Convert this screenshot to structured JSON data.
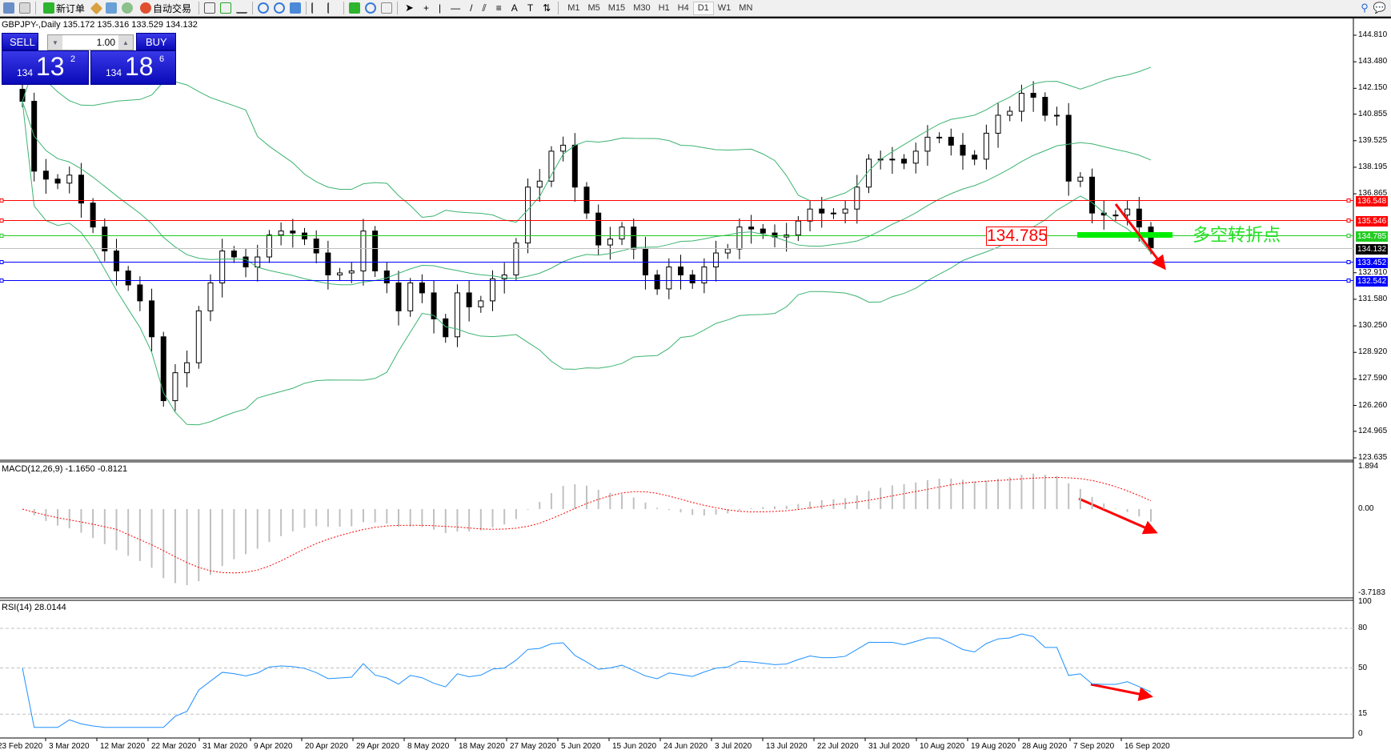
{
  "toolbar": {
    "new_order": "新订单",
    "auto_trading": "自动交易",
    "timeframes": [
      "M1",
      "M5",
      "M15",
      "M30",
      "H1",
      "H4",
      "D1",
      "W1",
      "MN"
    ],
    "active_timeframe": "D1"
  },
  "chart": {
    "header": "GBPJPY-,Daily  135.172 135.316 133.529 134.132",
    "symbol": "GBPJPY-",
    "period": "Daily"
  },
  "one_click": {
    "sell_label": "SELL",
    "buy_label": "BUY",
    "lot": "1.00",
    "sell_prefix": "134",
    "sell_big": "13",
    "sell_sup": "2",
    "buy_prefix": "134",
    "buy_big": "18",
    "buy_sup": "6"
  },
  "price_axis": {
    "ticks": [
      "144.810",
      "143.480",
      "142.150",
      "140.855",
      "139.525",
      "138.195",
      "136.865",
      "132.910",
      "131.580",
      "130.250",
      "128.920",
      "127.590",
      "126.260",
      "124.965",
      "123.635"
    ],
    "max": 144.81,
    "min": 123.635
  },
  "levels": [
    {
      "price": 136.548,
      "label": "136.548",
      "color": "#ff0000"
    },
    {
      "price": 135.546,
      "label": "135.546",
      "color": "#ff0000"
    },
    {
      "price": 134.785,
      "label": "134.785",
      "color": "#22cc22"
    },
    {
      "price": 134.132,
      "label": "134.132",
      "color": "#000000",
      "line": "#c0c0c0"
    },
    {
      "price": 133.452,
      "label": "133.452",
      "color": "#0000ff"
    },
    {
      "price": 132.542,
      "label": "132.542",
      "color": "#0000ff"
    }
  ],
  "annotations": {
    "level_box": "134.785",
    "turning_point": "多空转折点",
    "arrow_color": "#ff0000",
    "bar_color": "#00ee00"
  },
  "closes": [
    141.5,
    138.0,
    137.6,
    137.4,
    137.8,
    136.4,
    135.2,
    134.0,
    133.0,
    132.3,
    131.5,
    129.7,
    126.5,
    127.9,
    128.4,
    131.0,
    132.4,
    134.0,
    133.7,
    133.2,
    133.7,
    134.8,
    135.0,
    134.9,
    134.6,
    133.9,
    132.8,
    132.9,
    133.0,
    135.0,
    133.0,
    132.4,
    131.0,
    132.4,
    131.9,
    130.6,
    129.7,
    131.9,
    131.2,
    131.5,
    132.6,
    132.8,
    134.4,
    137.2,
    137.5,
    139.0,
    139.3,
    137.2,
    135.9,
    134.3,
    134.6,
    135.2,
    134.1,
    132.8,
    132.1,
    133.2,
    132.8,
    132.4,
    133.2,
    133.9,
    134.1,
    135.2,
    135.1,
    134.9,
    134.7,
    134.8,
    135.5,
    136.1,
    135.9,
    135.9,
    136.1,
    137.2,
    138.6,
    138.6,
    138.6,
    138.4,
    139.0,
    139.7,
    139.7,
    139.3,
    138.8,
    138.6,
    139.9,
    140.8,
    141.0,
    141.9,
    141.7,
    140.8,
    140.8,
    137.5,
    137.7,
    135.9,
    135.8,
    135.8,
    136.1,
    135.2,
    134.132
  ],
  "macd": {
    "label": "MACD(12,26,9) -1.1650 -0.8121",
    "ticks": [
      "1.894",
      "0.00",
      "-3.7183"
    ],
    "max": 1.894,
    "min": -3.7183
  },
  "rsi": {
    "label": "RSI(14) 28.0144",
    "ticks": [
      "100",
      "80",
      "50",
      "15",
      "0"
    ],
    "levels": [
      80,
      50,
      15
    ]
  },
  "dates": [
    "23 Feb 2020",
    "3 Mar 2020",
    "12 Mar 2020",
    "22 Mar 2020",
    "31 Mar 2020",
    "9 Apr 2020",
    "20 Apr 2020",
    "29 Apr 2020",
    "8 May 2020",
    "18 May 2020",
    "27 May 2020",
    "5 Jun 2020",
    "15 Jun 2020",
    "24 Jun 2020",
    "3 Jul 2020",
    "13 Jul 2020",
    "22 Jul 2020",
    "31 Jul 2020",
    "10 Aug 2020",
    "19 Aug 2020",
    "28 Aug 2020",
    "7 Sep 2020",
    "16 Sep 2020"
  ],
  "colors": {
    "bands": "#3cb371",
    "macd_hist": "#c0c0c0",
    "macd_signal": "#ff0000",
    "rsi": "#1e90ff"
  }
}
